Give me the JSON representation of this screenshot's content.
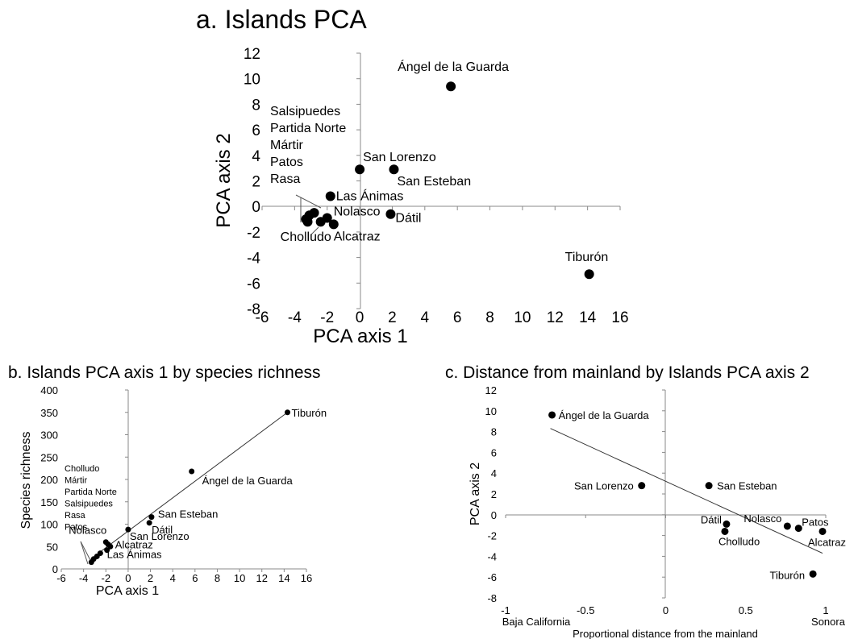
{
  "chart_data": [
    {
      "type": "scatter",
      "title": "a. Islands PCA",
      "xlabel": "PCA axis 1",
      "ylabel": "PCA axis 2",
      "xlim": [
        -6,
        16
      ],
      "ylim": [
        -8,
        12
      ],
      "xticks": [
        "-6",
        "-4",
        "-2",
        "0",
        "2",
        "4",
        "6",
        "8",
        "10",
        "12",
        "14",
        "16"
      ],
      "yticks": [
        "12",
        "10",
        "8",
        "6",
        "4",
        "2",
        "0",
        "-2",
        "-4",
        "-6",
        "-8"
      ],
      "points": [
        {
          "label": "Ángel de la Guarda",
          "x": 5.6,
          "y": 9.4
        },
        {
          "label": "San Lorenzo",
          "x": 0.0,
          "y": 2.9
        },
        {
          "label": "San Esteban",
          "x": 2.1,
          "y": 2.9
        },
        {
          "label": "Las Ánimas",
          "x": -1.8,
          "y": 0.8
        },
        {
          "label": "Dátil",
          "x": 1.9,
          "y": -0.6
        },
        {
          "label": "Nolasco",
          "x": -2.0,
          "y": -0.9
        },
        {
          "label": "Alcatraz",
          "x": -1.6,
          "y": -1.4
        },
        {
          "label": "Cholludo",
          "x": -2.4,
          "y": -1.2
        },
        {
          "label": "Tiburón",
          "x": 14.1,
          "y": -5.3
        },
        {
          "label": "",
          "x": -3.1,
          "y": -0.7
        },
        {
          "label": "",
          "x": -2.8,
          "y": -0.5
        },
        {
          "label": "",
          "x": -3.3,
          "y": -1.0
        },
        {
          "label": "",
          "x": -3.2,
          "y": -1.2
        }
      ],
      "group_label": [
        "Salsipuedes",
        "Partida Norte",
        "Mártir",
        "Patos",
        "Rasa"
      ],
      "grid": false
    },
    {
      "type": "scatter",
      "title": "b. Islands PCA axis 1 by species richness",
      "xlabel": "PCA axis 1",
      "ylabel": "Species richness",
      "xlim": [
        -6,
        16
      ],
      "ylim": [
        0,
        400
      ],
      "xticks": [
        "-6",
        "-4",
        "-2",
        "0",
        "2",
        "4",
        "6",
        "8",
        "10",
        "12",
        "14",
        "16"
      ],
      "yticks": [
        "400",
        "350",
        "300",
        "250",
        "200",
        "150",
        "100",
        "50",
        "0"
      ],
      "points": [
        {
          "label": "Tiburón",
          "x": 14.3,
          "y": 350
        },
        {
          "label": "Ángel de la Guarda",
          "x": 5.7,
          "y": 218
        },
        {
          "label": "San Esteban",
          "x": 2.1,
          "y": 116
        },
        {
          "label": "Dátil",
          "x": 1.9,
          "y": 103
        },
        {
          "label": "San Lorenzo",
          "x": 0.0,
          "y": 88
        },
        {
          "label": "Nolasco",
          "x": -2.0,
          "y": 60
        },
        {
          "label": "Alcatraz",
          "x": -1.6,
          "y": 50
        },
        {
          "label": "Las Ánimas",
          "x": -1.9,
          "y": 42
        },
        {
          "label": "",
          "x": -1.8,
          "y": 55
        },
        {
          "label": "",
          "x": -2.5,
          "y": 35
        },
        {
          "label": "",
          "x": -2.8,
          "y": 28
        },
        {
          "label": "",
          "x": -3.1,
          "y": 22
        },
        {
          "label": "",
          "x": -3.3,
          "y": 15
        }
      ],
      "group_label": [
        "Cholludo",
        "Mártir",
        "Partida Norte",
        "Salsipuedes",
        "Rasa",
        "Patos"
      ],
      "trendline": {
        "x1": -2.4,
        "y1": 40,
        "x2": 14.3,
        "y2": 350
      },
      "grid": false
    },
    {
      "type": "scatter",
      "title": "c. Distance from mainland by Islands PCA axis 2",
      "xlabel": "Proportional distance from the mainland",
      "ylabel": "PCA axis 2",
      "xlim": [
        -1,
        1
      ],
      "ylim": [
        -8,
        12
      ],
      "xticks": [
        "-1",
        "-0.5",
        "0",
        "0.5",
        "1"
      ],
      "yticks": [
        "12",
        "10",
        "8",
        "6",
        "4",
        "2",
        "0",
        "-2",
        "-4",
        "-6",
        "-8"
      ],
      "endpoint_labels": {
        "left": "Baja California",
        "right": "Sonora"
      },
      "points": [
        {
          "label": "Ángel de la Guarda",
          "x": -0.71,
          "y": 9.6
        },
        {
          "label": "San Lorenzo",
          "x": -0.15,
          "y": 2.8
        },
        {
          "label": "San Esteban",
          "x": 0.27,
          "y": 2.8
        },
        {
          "label": "Dátil",
          "x": 0.38,
          "y": -0.9
        },
        {
          "label": "Cholludo",
          "x": 0.37,
          "y": -1.6
        },
        {
          "label": "Nolasco",
          "x": 0.76,
          "y": -1.1
        },
        {
          "label": "Patos",
          "x": 0.83,
          "y": -1.3
        },
        {
          "label": "Alcatraz",
          "x": 0.98,
          "y": -1.6
        },
        {
          "label": "Tiburón",
          "x": 0.92,
          "y": -5.7
        }
      ],
      "trendline": {
        "x1": -0.72,
        "y1": 8.3,
        "x2": 0.98,
        "y2": -3.7
      },
      "grid": false
    }
  ]
}
